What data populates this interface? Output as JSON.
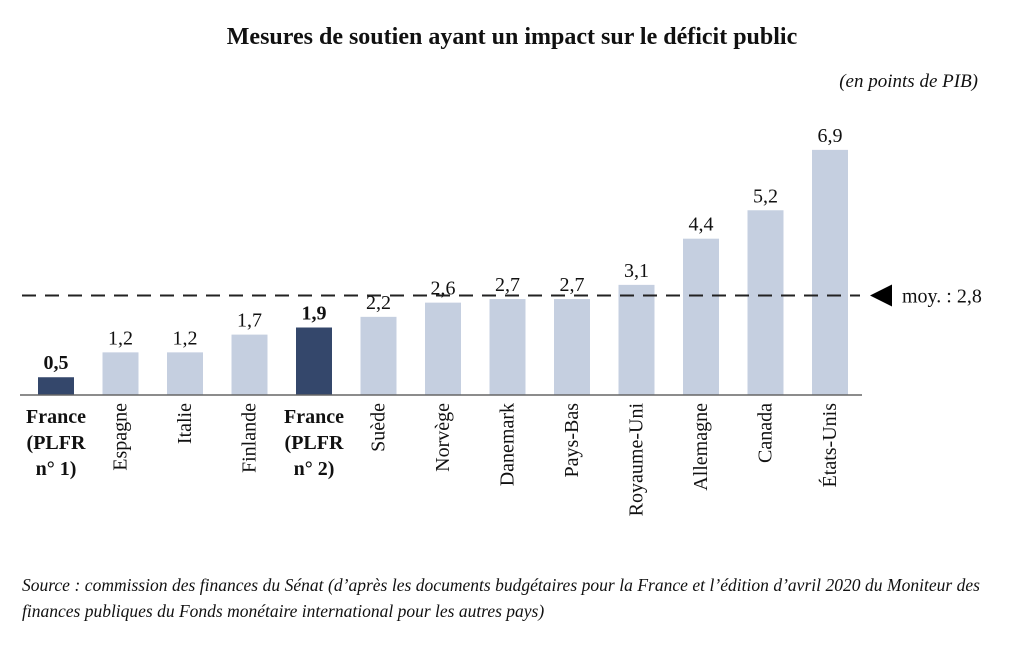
{
  "title": "Mesures de soutien ayant un impact sur le déficit public",
  "unit": "(en points de PIB)",
  "average_label": "moy. :  2,8",
  "source": "Source : commission des finances du Sénat (d’après les documents budgétaires pour la France et l’édition d’avril 2020 du Moniteur des finances publiques du Fonds monétaire international pour les autres pays)",
  "colors": {
    "highlight": "#34476b",
    "bar": "#c5cfe0",
    "axis": "#666666",
    "average": "#222222"
  },
  "chart_data": {
    "type": "bar",
    "categories": [
      "France (PLFR n° 1)",
      "Espagne",
      "Italie",
      "Finlande",
      "France (PLFR n° 2)",
      "Suède",
      "Norvège",
      "Danemark",
      "Pays-Bas",
      "Royaume-Uni",
      "Allemagne",
      "Canada",
      "États-Unis"
    ],
    "values": [
      0.5,
      1.2,
      1.2,
      1.7,
      1.9,
      2.2,
      2.6,
      2.7,
      2.7,
      3.1,
      4.4,
      5.2,
      6.9
    ],
    "value_labels": [
      "0,5",
      "1,2",
      "1,2",
      "1,7",
      "1,9",
      "2,2",
      "2,6",
      "2,7",
      "2,7",
      "3,1",
      "4,4",
      "5,2",
      "6,9"
    ],
    "highlighted": [
      true,
      false,
      false,
      false,
      true,
      false,
      false,
      false,
      false,
      false,
      false,
      false,
      false
    ],
    "average": 2.8,
    "ylim": [
      0,
      7.6
    ],
    "grid": false
  }
}
